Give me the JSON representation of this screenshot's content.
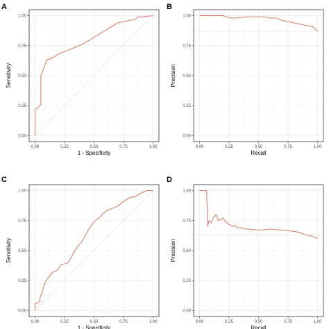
{
  "colors": {
    "curve": "#d9826b",
    "reference": "#cccccc"
  },
  "chart_data": [
    {
      "panel": "A",
      "type": "line",
      "xlabel": "1 - Specificity",
      "ylabel": "Sensitivity",
      "xlim": [
        0,
        1
      ],
      "ylim": [
        0,
        1
      ],
      "xticks": [
        "0.00",
        "0.25",
        "0.50",
        "0.75",
        "1.00"
      ],
      "yticks": [
        "0.00",
        "0.25",
        "0.50",
        "0.75",
        "1.00"
      ],
      "grid": true,
      "reference_line": "diagonal",
      "series": [
        {
          "x": [
            0.0,
            0.0,
            0.02,
            0.04,
            0.05,
            0.05,
            0.07,
            0.1,
            0.15,
            0.2,
            0.25,
            0.3,
            0.35,
            0.4,
            0.45,
            0.5,
            0.55,
            0.6,
            0.65,
            0.7,
            0.75,
            0.85,
            0.87,
            0.9,
            1.0
          ],
          "y": [
            0.0,
            0.22,
            0.23,
            0.25,
            0.26,
            0.5,
            0.55,
            0.63,
            0.65,
            0.68,
            0.7,
            0.72,
            0.74,
            0.76,
            0.79,
            0.82,
            0.85,
            0.88,
            0.91,
            0.94,
            0.95,
            0.97,
            0.99,
            0.99,
            1.0
          ]
        }
      ]
    },
    {
      "panel": "B",
      "type": "line",
      "xlabel": "Recall",
      "ylabel": "Precision",
      "xlim": [
        0,
        1
      ],
      "ylim": [
        0,
        1
      ],
      "xticks": [
        "0.00",
        "0.25",
        "0.50",
        "0.75",
        "1.00"
      ],
      "yticks": [
        "0.00",
        "0.25",
        "0.50",
        "0.75",
        "1.00"
      ],
      "grid": true,
      "reference_line": 0.87,
      "series": [
        {
          "x": [
            0.0,
            0.1,
            0.2,
            0.23,
            0.26,
            0.3,
            0.4,
            0.5,
            0.55,
            0.6,
            0.65,
            0.7,
            0.8,
            0.9,
            0.95,
            0.97,
            1.0
          ],
          "y": [
            1.0,
            1.0,
            1.0,
            0.99,
            0.98,
            0.98,
            0.99,
            0.99,
            0.99,
            0.98,
            0.98,
            0.96,
            0.94,
            0.92,
            0.91,
            0.9,
            0.87
          ]
        }
      ]
    },
    {
      "panel": "C",
      "type": "line",
      "xlabel": "1 - Specificity",
      "ylabel": "Sensitivity",
      "xlim": [
        0,
        1
      ],
      "ylim": [
        0,
        1
      ],
      "xticks": [
        "0.00",
        "0.25",
        "0.50",
        "0.75",
        "1.00"
      ],
      "yticks": [
        "0.00",
        "0.25",
        "0.50",
        "0.75",
        "1.00"
      ],
      "grid": true,
      "reference_line": "diagonal",
      "series": [
        {
          "x": [
            0.0,
            0.0,
            0.04,
            0.04,
            0.06,
            0.08,
            0.1,
            0.12,
            0.15,
            0.18,
            0.2,
            0.22,
            0.25,
            0.28,
            0.3,
            0.32,
            0.35,
            0.4,
            0.45,
            0.5,
            0.55,
            0.6,
            0.65,
            0.7,
            0.75,
            0.8,
            0.85,
            0.88,
            0.9,
            0.95,
            1.0
          ],
          "y": [
            0.0,
            0.06,
            0.07,
            0.1,
            0.15,
            0.22,
            0.26,
            0.28,
            0.32,
            0.33,
            0.35,
            0.38,
            0.39,
            0.4,
            0.43,
            0.47,
            0.52,
            0.58,
            0.67,
            0.74,
            0.78,
            0.83,
            0.85,
            0.87,
            0.91,
            0.94,
            0.95,
            0.97,
            0.98,
            1.0,
            1.0
          ]
        }
      ]
    },
    {
      "panel": "D",
      "type": "line",
      "xlabel": "Recall",
      "ylabel": "Precision",
      "xlim": [
        0,
        1
      ],
      "ylim": [
        0,
        1
      ],
      "xticks": [
        "0.00",
        "0.25",
        "0.50",
        "0.75",
        "1.00"
      ],
      "yticks": [
        "0.00",
        "0.25",
        "0.50",
        "0.75",
        "1.00"
      ],
      "grid": true,
      "reference_line": 0.63,
      "series": [
        {
          "x": [
            0.0,
            0.04,
            0.06,
            0.07,
            0.08,
            0.1,
            0.12,
            0.14,
            0.16,
            0.18,
            0.2,
            0.22,
            0.25,
            0.28,
            0.3,
            0.32,
            0.35,
            0.4,
            0.5,
            0.6,
            0.7,
            0.8,
            0.85,
            0.9,
            0.95,
            1.0
          ],
          "y": [
            1.0,
            1.0,
            1.0,
            0.7,
            0.75,
            0.73,
            0.78,
            0.8,
            0.75,
            0.76,
            0.77,
            0.74,
            0.72,
            0.7,
            0.71,
            0.69,
            0.69,
            0.68,
            0.67,
            0.68,
            0.67,
            0.66,
            0.65,
            0.63,
            0.62,
            0.6
          ]
        }
      ]
    }
  ]
}
